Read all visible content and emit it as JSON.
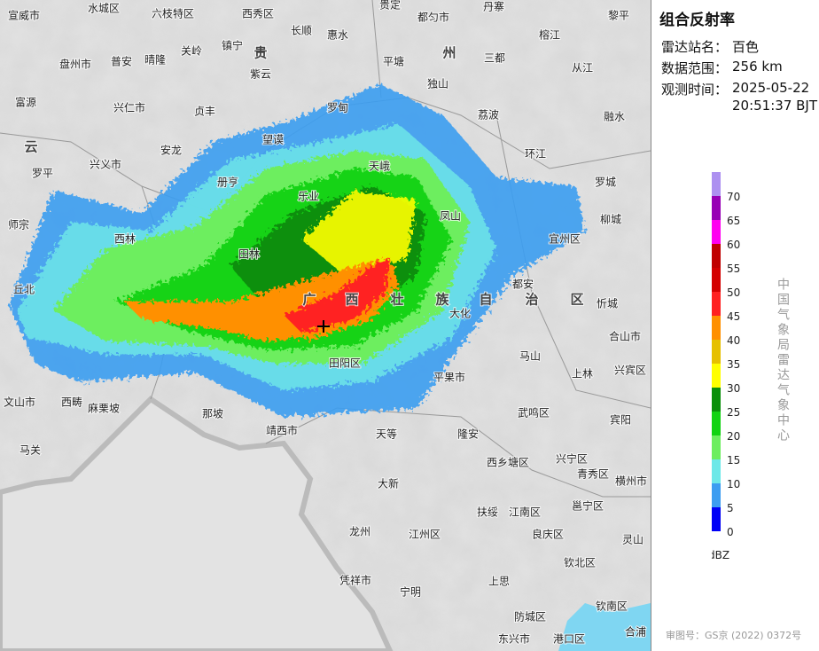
{
  "panel": {
    "title": "组合反射率",
    "fields": [
      {
        "label": "雷达站名：",
        "value": [
          "百色"
        ]
      },
      {
        "label": "数据范围：",
        "value": [
          "256 km"
        ]
      },
      {
        "label": "观测时间：",
        "value": [
          "2025-05-22",
          "20:51:37 BJT"
        ]
      }
    ]
  },
  "legend": {
    "ticks": [
      0,
      5,
      10,
      15,
      20,
      25,
      30,
      35,
      40,
      45,
      50,
      55,
      60,
      65,
      70
    ],
    "colors": [
      "#0000f6",
      "#3c9df1",
      "#6de8e8",
      "#6dee5f",
      "#12d312",
      "#0a8f0a",
      "#ffff00",
      "#e6c000",
      "#ff9000",
      "#ff2020",
      "#d40000",
      "#c00000",
      "#ff00f0",
      "#9700b5",
      "#ad90f0"
    ],
    "unit": "dBZ"
  },
  "credit": "中国气象局雷达气象中心",
  "review_no": "审图号：GS京 (2022) 0372号",
  "map": {
    "labels": [
      "宣威市",
      "水城区",
      "六枝特区",
      "西秀区",
      "贵定",
      "都匀市",
      "丹寨",
      "黎平",
      "长顺",
      "惠水",
      "镇宁",
      "关岭",
      "盘州市",
      "普安",
      "晴隆",
      "贵",
      "州",
      "紫云",
      "平塘",
      "三都",
      "榕江",
      "从江",
      "独山",
      "富源",
      "兴仁市",
      "贞丰",
      "罗甸",
      "荔波",
      "融水",
      "云",
      "兴义市",
      "安龙",
      "望谟",
      "环江",
      "罗平",
      "册亨",
      "天峨",
      "乐业",
      "罗城",
      "师宗",
      "凤山",
      "西林",
      "柳城",
      "宜州区",
      "田林",
      "都安",
      "广",
      "西",
      "壮",
      "族",
      "自",
      "治",
      "区",
      "忻城",
      "丘北",
      "大化",
      "合山市",
      "兴宾区",
      "田阳区",
      "马山",
      "上林",
      "平果市",
      "西畴",
      "文山市",
      "麻栗坡",
      "那坡",
      "武鸣区",
      "宾阳",
      "靖西市",
      "天等",
      "隆安",
      "马关",
      "西乡塘区",
      "兴宁区",
      "青秀区",
      "横州市",
      "大新",
      "扶绥",
      "江南区",
      "邕宁区",
      "灵山",
      "龙州",
      "江州区",
      "良庆区",
      "钦北区",
      "凭祥市",
      "宁明",
      "上思",
      "防城区",
      "钦南区",
      "东兴市",
      "港口区",
      "合浦"
    ]
  }
}
